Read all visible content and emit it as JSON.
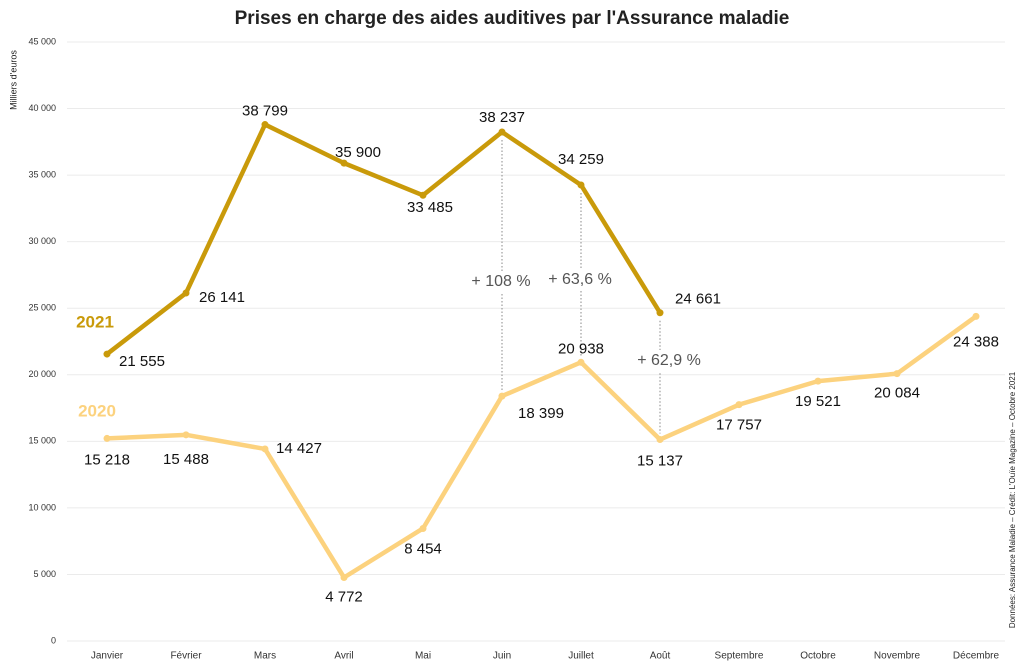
{
  "chart_data": {
    "type": "line",
    "title": "Prises en charge des aides auditives par l'Assurance maladie",
    "y_label": "Milliers d'euros",
    "source": "Données: Assurance Maladie – Crédit: L'Ouïe Magazine – Octobre 2021",
    "categories": [
      "Janvier",
      "Février",
      "Mars",
      "Avril",
      "Mai",
      "Juin",
      "Juillet",
      "Août",
      "Septembre",
      "Octobre",
      "Novembre",
      "Décembre"
    ],
    "series": [
      {
        "name": "2021",
        "color": "#c99a0a",
        "values": [
          21555,
          26141,
          38799,
          35900,
          33485,
          38237,
          34259,
          24661,
          null,
          null,
          null,
          null
        ],
        "value_labels": [
          "21 555",
          "26 141",
          "38 799",
          "35 900",
          "33 485",
          "38 237",
          "34 259",
          "24 661",
          null,
          null,
          null,
          null
        ]
      },
      {
        "name": "2020",
        "color": "#fcd27e",
        "values": [
          15218,
          15488,
          14427,
          4772,
          8454,
          18399,
          20938,
          15137,
          17757,
          19521,
          20084,
          24388
        ],
        "value_labels": [
          "15 218",
          "15 488",
          "14 427",
          "4 772",
          "8 454",
          "18 399",
          "20 938",
          "15 137",
          "17 757",
          "19 521",
          "20 084",
          "24 388"
        ]
      }
    ],
    "annotations": [
      "+ 108 %",
      "+ 63,6 %",
      "+ 62,9 %"
    ],
    "ylim": [
      0,
      45000
    ],
    "yticks": [
      {
        "value": 0,
        "label": "0"
      },
      {
        "value": 5000,
        "label": "5 000"
      },
      {
        "value": 10000,
        "label": "10 000"
      },
      {
        "value": 15000,
        "label": "15 000"
      },
      {
        "value": 20000,
        "label": "20 000"
      },
      {
        "value": 25000,
        "label": "25 000"
      },
      {
        "value": 30000,
        "label": "30 000"
      },
      {
        "value": 35000,
        "label": "35 000"
      },
      {
        "value": 40000,
        "label": "40 000"
      },
      {
        "value": 45000,
        "label": "45 000"
      }
    ],
    "grid": true
  }
}
